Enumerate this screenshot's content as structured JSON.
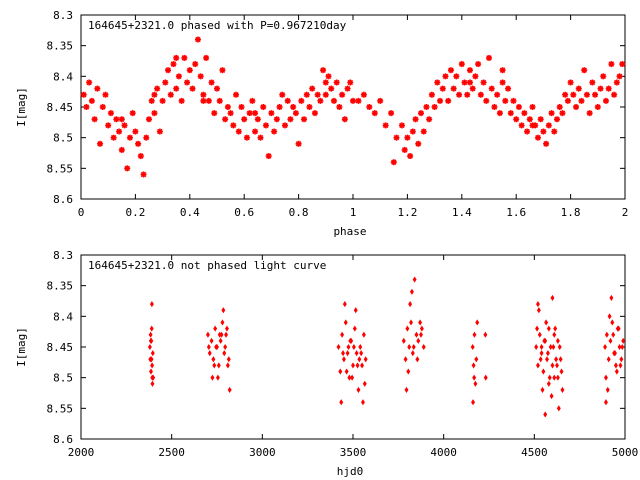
{
  "colors": {
    "points": "#ff0000",
    "axes": "#000000",
    "background": "#ffffff"
  },
  "chart_data": [
    {
      "type": "scatter",
      "title": "164645+2321.0 phased with P=0.967210day",
      "xlabel": "phase",
      "ylabel": "I[mag]",
      "xlim": [
        0,
        2
      ],
      "ylim": [
        8.3,
        8.6
      ],
      "y_inverted": true,
      "grid": false,
      "marker": "cross",
      "x_ticks": [
        "0",
        "0.2",
        "0.4",
        "0.6",
        "0.8",
        "1",
        "1.2",
        "1.4",
        "1.6",
        "1.8",
        "2"
      ],
      "y_ticks": [
        "8.3",
        "8.35",
        "8.4",
        "8.45",
        "8.5",
        "8.55",
        "8.6"
      ],
      "points": [
        [
          0.01,
          8.43
        ],
        [
          0.02,
          8.45
        ],
        [
          0.03,
          8.41
        ],
        [
          0.04,
          8.44
        ],
        [
          0.05,
          8.47
        ],
        [
          0.06,
          8.42
        ],
        [
          0.07,
          8.51
        ],
        [
          0.08,
          8.45
        ],
        [
          0.09,
          8.43
        ],
        [
          0.1,
          8.48
        ],
        [
          0.11,
          8.46
        ],
        [
          0.12,
          8.5
        ],
        [
          0.13,
          8.47
        ],
        [
          0.14,
          8.49
        ],
        [
          0.15,
          8.52
        ],
        [
          0.16,
          8.48
        ],
        [
          0.17,
          8.55
        ],
        [
          0.18,
          8.5
        ],
        [
          0.19,
          8.46
        ],
        [
          0.2,
          8.49
        ],
        [
          0.21,
          8.51
        ],
        [
          0.22,
          8.53
        ],
        [
          0.23,
          8.56
        ],
        [
          0.24,
          8.5
        ],
        [
          0.25,
          8.47
        ],
        [
          0.26,
          8.44
        ],
        [
          0.27,
          8.46
        ],
        [
          0.28,
          8.42
        ],
        [
          0.29,
          8.49
        ],
        [
          0.3,
          8.44
        ],
        [
          0.31,
          8.41
        ],
        [
          0.32,
          8.39
        ],
        [
          0.33,
          8.43
        ],
        [
          0.34,
          8.38
        ],
        [
          0.35,
          8.42
        ],
        [
          0.36,
          8.4
        ],
        [
          0.37,
          8.44
        ],
        [
          0.38,
          8.37
        ],
        [
          0.39,
          8.41
        ],
        [
          0.4,
          8.39
        ],
        [
          0.41,
          8.42
        ],
        [
          0.42,
          8.38
        ],
        [
          0.43,
          8.34
        ],
        [
          0.44,
          8.4
        ],
        [
          0.45,
          8.43
        ],
        [
          0.46,
          8.37
        ],
        [
          0.47,
          8.44
        ],
        [
          0.48,
          8.41
        ],
        [
          0.49,
          8.46
        ],
        [
          0.5,
          8.42
        ],
        [
          0.51,
          8.44
        ],
        [
          0.52,
          8.39
        ],
        [
          0.53,
          8.47
        ],
        [
          0.54,
          8.45
        ],
        [
          0.55,
          8.46
        ],
        [
          0.56,
          8.48
        ],
        [
          0.57,
          8.43
        ],
        [
          0.58,
          8.49
        ],
        [
          0.59,
          8.45
        ],
        [
          0.6,
          8.47
        ],
        [
          0.61,
          8.5
        ],
        [
          0.62,
          8.46
        ],
        [
          0.63,
          8.44
        ],
        [
          0.64,
          8.49
        ],
        [
          0.65,
          8.47
        ],
        [
          0.66,
          8.5
        ],
        [
          0.67,
          8.45
        ],
        [
          0.68,
          8.48
        ],
        [
          0.69,
          8.53
        ],
        [
          0.7,
          8.46
        ],
        [
          0.71,
          8.49
        ],
        [
          0.72,
          8.47
        ],
        [
          0.73,
          8.45
        ],
        [
          0.74,
          8.43
        ],
        [
          0.75,
          8.48
        ],
        [
          0.76,
          8.44
        ],
        [
          0.77,
          8.47
        ],
        [
          0.78,
          8.45
        ],
        [
          0.79,
          8.46
        ],
        [
          0.8,
          8.51
        ],
        [
          0.81,
          8.44
        ],
        [
          0.82,
          8.47
        ],
        [
          0.83,
          8.43
        ],
        [
          0.84,
          8.45
        ],
        [
          0.85,
          8.42
        ],
        [
          0.86,
          8.46
        ],
        [
          0.87,
          8.43
        ],
        [
          0.88,
          8.44
        ],
        [
          0.89,
          8.39
        ],
        [
          0.9,
          8.43
        ],
        [
          0.91,
          8.4
        ],
        [
          0.92,
          8.42
        ],
        [
          0.93,
          8.44
        ],
        [
          0.94,
          8.41
        ],
        [
          0.95,
          8.45
        ],
        [
          0.96,
          8.43
        ],
        [
          0.97,
          8.47
        ],
        [
          0.98,
          8.42
        ],
        [
          0.99,
          8.41
        ],
        [
          1.0,
          8.44
        ],
        [
          1.02,
          8.44
        ],
        [
          1.04,
          8.43
        ],
        [
          1.06,
          8.45
        ],
        [
          1.08,
          8.46
        ],
        [
          1.1,
          8.44
        ],
        [
          1.12,
          8.48
        ],
        [
          1.14,
          8.46
        ],
        [
          1.16,
          8.5
        ],
        [
          1.18,
          8.48
        ],
        [
          1.2,
          8.5
        ],
        [
          1.21,
          8.53
        ],
        [
          1.22,
          8.49
        ],
        [
          1.23,
          8.47
        ],
        [
          1.24,
          8.51
        ],
        [
          1.25,
          8.46
        ],
        [
          1.26,
          8.49
        ],
        [
          1.27,
          8.45
        ],
        [
          1.28,
          8.47
        ],
        [
          1.29,
          8.43
        ],
        [
          1.3,
          8.45
        ],
        [
          1.31,
          8.41
        ],
        [
          1.32,
          8.44
        ],
        [
          1.33,
          8.42
        ],
        [
          1.34,
          8.4
        ],
        [
          1.35,
          8.44
        ],
        [
          1.36,
          8.39
        ],
        [
          1.37,
          8.42
        ],
        [
          1.38,
          8.4
        ],
        [
          1.39,
          8.43
        ],
        [
          1.4,
          8.38
        ],
        [
          1.41,
          8.41
        ],
        [
          1.42,
          8.43
        ],
        [
          1.43,
          8.39
        ],
        [
          1.44,
          8.42
        ],
        [
          1.45,
          8.4
        ],
        [
          1.46,
          8.38
        ],
        [
          1.47,
          8.43
        ],
        [
          1.48,
          8.41
        ],
        [
          1.49,
          8.44
        ],
        [
          1.5,
          8.37
        ],
        [
          1.51,
          8.42
        ],
        [
          1.52,
          8.45
        ],
        [
          1.53,
          8.43
        ],
        [
          1.54,
          8.46
        ],
        [
          1.55,
          8.41
        ],
        [
          1.56,
          8.44
        ],
        [
          1.57,
          8.42
        ],
        [
          1.58,
          8.46
        ],
        [
          1.59,
          8.44
        ],
        [
          1.6,
          8.47
        ],
        [
          1.61,
          8.45
        ],
        [
          1.62,
          8.48
        ],
        [
          1.63,
          8.46
        ],
        [
          1.64,
          8.49
        ],
        [
          1.65,
          8.47
        ],
        [
          1.66,
          8.45
        ],
        [
          1.67,
          8.48
        ],
        [
          1.68,
          8.5
        ],
        [
          1.69,
          8.47
        ],
        [
          1.7,
          8.49
        ],
        [
          1.71,
          8.51
        ],
        [
          1.72,
          8.48
        ],
        [
          1.73,
          8.46
        ],
        [
          1.74,
          8.49
        ],
        [
          1.75,
          8.47
        ],
        [
          1.76,
          8.45
        ],
        [
          1.77,
          8.46
        ],
        [
          1.78,
          8.43
        ],
        [
          1.79,
          8.44
        ],
        [
          1.8,
          8.41
        ],
        [
          1.81,
          8.43
        ],
        [
          1.82,
          8.45
        ],
        [
          1.83,
          8.42
        ],
        [
          1.84,
          8.44
        ],
        [
          1.85,
          8.39
        ],
        [
          1.86,
          8.43
        ],
        [
          1.87,
          8.46
        ],
        [
          1.88,
          8.41
        ],
        [
          1.89,
          8.43
        ],
        [
          1.9,
          8.45
        ],
        [
          1.91,
          8.42
        ],
        [
          1.92,
          8.4
        ],
        [
          1.93,
          8.44
        ],
        [
          1.94,
          8.42
        ],
        [
          1.95,
          8.38
        ],
        [
          1.96,
          8.43
        ],
        [
          1.97,
          8.41
        ],
        [
          1.98,
          8.4
        ],
        [
          1.99,
          8.38
        ],
        [
          0.9,
          8.41
        ],
        [
          0.35,
          8.37
        ],
        [
          0.45,
          8.44
        ],
        [
          0.15,
          8.47
        ],
        [
          0.27,
          8.43
        ],
        [
          0.64,
          8.46
        ],
        [
          1.15,
          8.54
        ],
        [
          1.19,
          8.52
        ],
        [
          1.43,
          8.41
        ],
        [
          1.66,
          8.48
        ],
        [
          1.55,
          8.39
        ]
      ]
    },
    {
      "type": "scatter",
      "title": "164645+2321.0 not phased light curve",
      "xlabel": "hjd0",
      "ylabel": "I[mag]",
      "xlim": [
        2000,
        5000
      ],
      "ylim": [
        8.3,
        8.6
      ],
      "y_inverted": true,
      "grid": false,
      "marker": "diamond",
      "x_ticks": [
        "2000",
        "2500",
        "3000",
        "3500",
        "4000",
        "4500",
        "5000"
      ],
      "y_ticks": [
        "8.3",
        "8.35",
        "8.4",
        "8.45",
        "8.5",
        "8.55",
        "8.6"
      ],
      "points": [
        [
          2380,
          8.45
        ],
        [
          2382,
          8.47
        ],
        [
          2384,
          8.43
        ],
        [
          2386,
          8.49
        ],
        [
          2388,
          8.44
        ],
        [
          2390,
          8.42
        ],
        [
          2392,
          8.48
        ],
        [
          2394,
          8.51
        ],
        [
          2396,
          8.46
        ],
        [
          2398,
          8.5
        ],
        [
          2391,
          8.38
        ],
        [
          2385,
          8.44
        ],
        [
          2393,
          8.5
        ],
        [
          2389,
          8.47
        ],
        [
          2700,
          8.43
        ],
        [
          2710,
          8.46
        ],
        [
          2720,
          8.44
        ],
        [
          2730,
          8.47
        ],
        [
          2740,
          8.42
        ],
        [
          2750,
          8.45
        ],
        [
          2760,
          8.48
        ],
        [
          2770,
          8.44
        ],
        [
          2780,
          8.41
        ],
        [
          2790,
          8.46
        ],
        [
          2800,
          8.43
        ],
        [
          2810,
          8.48
        ],
        [
          2820,
          8.52
        ],
        [
          2725,
          8.5
        ],
        [
          2745,
          8.45
        ],
        [
          2765,
          8.43
        ],
        [
          2785,
          8.39
        ],
        [
          2795,
          8.45
        ],
        [
          2705,
          8.45
        ],
        [
          2735,
          8.48
        ],
        [
          2755,
          8.5
        ],
        [
          2775,
          8.43
        ],
        [
          2805,
          8.42
        ],
        [
          2815,
          8.47
        ],
        [
          3420,
          8.45
        ],
        [
          3430,
          8.49
        ],
        [
          3440,
          8.43
        ],
        [
          3450,
          8.47
        ],
        [
          3460,
          8.41
        ],
        [
          3470,
          8.46
        ],
        [
          3480,
          8.5
        ],
        [
          3490,
          8.44
        ],
        [
          3500,
          8.48
        ],
        [
          3510,
          8.42
        ],
        [
          3520,
          8.46
        ],
        [
          3530,
          8.52
        ],
        [
          3540,
          8.45
        ],
        [
          3550,
          8.48
        ],
        [
          3560,
          8.43
        ],
        [
          3570,
          8.47
        ],
        [
          3435,
          8.54
        ],
        [
          3455,
          8.38
        ],
        [
          3475,
          8.45
        ],
        [
          3495,
          8.5
        ],
        [
          3515,
          8.39
        ],
        [
          3535,
          8.47
        ],
        [
          3555,
          8.54
        ],
        [
          3445,
          8.46
        ],
        [
          3465,
          8.49
        ],
        [
          3485,
          8.44
        ],
        [
          3505,
          8.45
        ],
        [
          3525,
          8.48
        ],
        [
          3545,
          8.46
        ],
        [
          3565,
          8.51
        ],
        [
          3780,
          8.44
        ],
        [
          3790,
          8.47
        ],
        [
          3800,
          8.42
        ],
        [
          3810,
          8.45
        ],
        [
          3820,
          8.41
        ],
        [
          3830,
          8.46
        ],
        [
          3840,
          8.34
        ],
        [
          3850,
          8.43
        ],
        [
          3860,
          8.44
        ],
        [
          3870,
          8.41
        ],
        [
          3880,
          8.42
        ],
        [
          3890,
          8.45
        ],
        [
          3795,
          8.52
        ],
        [
          3815,
          8.38
        ],
        [
          3835,
          8.45
        ],
        [
          3855,
          8.47
        ],
        [
          3875,
          8.43
        ],
        [
          3805,
          8.49
        ],
        [
          3825,
          8.36
        ],
        [
          4160,
          8.45
        ],
        [
          4165,
          8.48
        ],
        [
          4170,
          8.43
        ],
        [
          4175,
          8.51
        ],
        [
          4180,
          8.47
        ],
        [
          4185,
          8.41
        ],
        [
          4162,
          8.54
        ],
        [
          4168,
          8.5
        ],
        [
          4230,
          8.43
        ],
        [
          4232,
          8.5
        ],
        [
          4510,
          8.45
        ],
        [
          4520,
          8.48
        ],
        [
          4530,
          8.43
        ],
        [
          4540,
          8.46
        ],
        [
          4550,
          8.49
        ],
        [
          4560,
          8.44
        ],
        [
          4570,
          8.47
        ],
        [
          4580,
          8.51
        ],
        [
          4590,
          8.45
        ],
        [
          4600,
          8.48
        ],
        [
          4610,
          8.43
        ],
        [
          4620,
          8.47
        ],
        [
          4630,
          8.5
        ],
        [
          4640,
          8.45
        ],
        [
          4650,
          8.49
        ],
        [
          4515,
          8.42
        ],
        [
          4525,
          8.39
        ],
        [
          4535,
          8.47
        ],
        [
          4545,
          8.52
        ],
        [
          4555,
          8.44
        ],
        [
          4565,
          8.41
        ],
        [
          4575,
          8.46
        ],
        [
          4585,
          8.5
        ],
        [
          4595,
          8.53
        ],
        [
          4605,
          8.45
        ],
        [
          4615,
          8.42
        ],
        [
          4625,
          8.48
        ],
        [
          4635,
          8.55
        ],
        [
          4645,
          8.47
        ],
        [
          4655,
          8.52
        ],
        [
          4560,
          8.56
        ],
        [
          4600,
          8.37
        ],
        [
          4520,
          8.38
        ],
        [
          4580,
          8.42
        ],
        [
          4630,
          8.44
        ],
        [
          4540,
          8.45
        ],
        [
          4610,
          8.5
        ],
        [
          4890,
          8.45
        ],
        [
          4900,
          8.43
        ],
        [
          4910,
          8.47
        ],
        [
          4920,
          8.44
        ],
        [
          4930,
          8.41
        ],
        [
          4940,
          8.46
        ],
        [
          4950,
          8.48
        ],
        [
          4960,
          8.42
        ],
        [
          4970,
          8.45
        ],
        [
          4980,
          8.47
        ],
        [
          4990,
          8.44
        ],
        [
          4895,
          8.5
        ],
        [
          4905,
          8.52
        ],
        [
          4915,
          8.4
        ],
        [
          4925,
          8.37
        ],
        [
          4935,
          8.43
        ],
        [
          4945,
          8.46
        ],
        [
          4955,
          8.49
        ],
        [
          4965,
          8.42
        ],
        [
          4975,
          8.48
        ],
        [
          4985,
          8.45
        ],
        [
          4895,
          8.54
        ]
      ]
    }
  ]
}
